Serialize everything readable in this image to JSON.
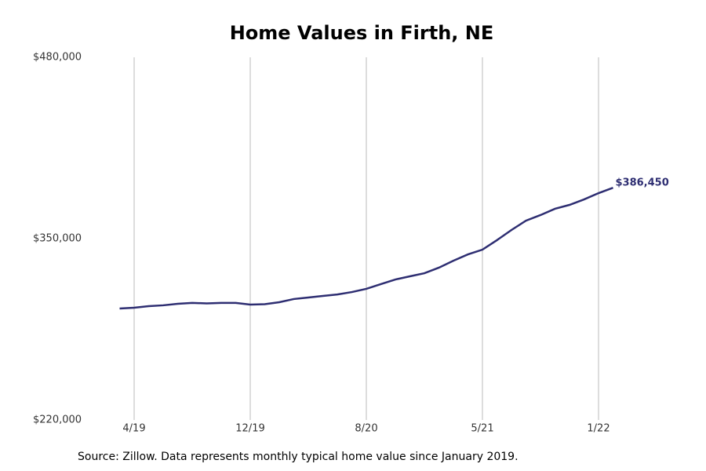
{
  "chart_data": {
    "type": "line",
    "title": "Home Values in Firth, NE",
    "source": "Source: Zillow. Data represents monthly typical home value since January 2019.",
    "categories": [
      null,
      "4/19",
      null,
      null,
      null,
      null,
      null,
      null,
      null,
      "12/19",
      null,
      null,
      null,
      null,
      null,
      null,
      null,
      "8/20",
      null,
      null,
      null,
      null,
      null,
      null,
      null,
      "5/21",
      null,
      null,
      null,
      null,
      null,
      null,
      null,
      "1/22",
      null
    ],
    "series": [
      {
        "name": "Home value",
        "color": "#2e2e72",
        "values": [
          299900,
          300500,
          301600,
          302200,
          303300,
          303900,
          303600,
          303900,
          303900,
          302700,
          303000,
          304400,
          306700,
          307800,
          308900,
          310000,
          311700,
          314000,
          317400,
          320700,
          323000,
          325200,
          329200,
          334200,
          338700,
          342100,
          348900,
          356200,
          362900,
          366900,
          371400,
          374200,
          378100,
          382600,
          386450
        ],
        "value_labels": [
          null,
          null,
          null,
          null,
          null,
          null,
          null,
          null,
          null,
          null,
          null,
          null,
          null,
          null,
          null,
          null,
          null,
          null,
          null,
          null,
          null,
          null,
          null,
          null,
          null,
          null,
          null,
          null,
          null,
          null,
          null,
          null,
          null,
          null,
          "$386,450"
        ]
      }
    ],
    "ylim": [
      220000,
      480000
    ],
    "yticks": [
      {
        "value": 220000,
        "label": "$220,000"
      },
      {
        "value": 350000,
        "label": "$350,000"
      },
      {
        "value": 480000,
        "label": "$480,000"
      }
    ],
    "grid": true
  }
}
